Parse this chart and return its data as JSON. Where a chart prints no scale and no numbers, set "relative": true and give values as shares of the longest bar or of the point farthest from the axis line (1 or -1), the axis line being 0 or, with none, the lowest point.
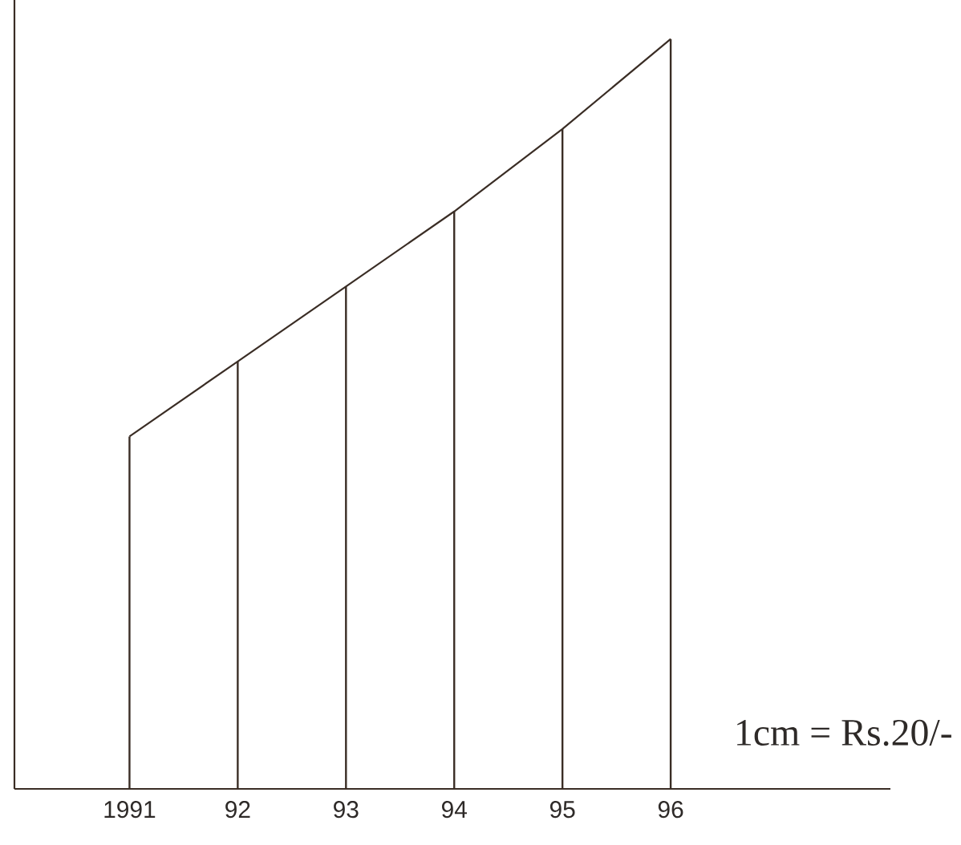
{
  "chart_data": {
    "type": "line",
    "categories": [
      "1991",
      "92",
      "93",
      "94",
      "95",
      "96"
    ],
    "relative": true,
    "marker": "none",
    "series": [
      {
        "color": "#3a2d25",
        "values": [
          0.47,
          0.57,
          0.67,
          0.77,
          0.88,
          1
        ]
      },
      {
        "type": "bar",
        "color": "#3a2d25",
        "values": [
          0.47,
          0.57,
          0.67,
          0.77,
          0.88,
          1
        ]
      }
    ],
    "annotations": [
      "1cm = Rs.20/-"
    ]
  }
}
